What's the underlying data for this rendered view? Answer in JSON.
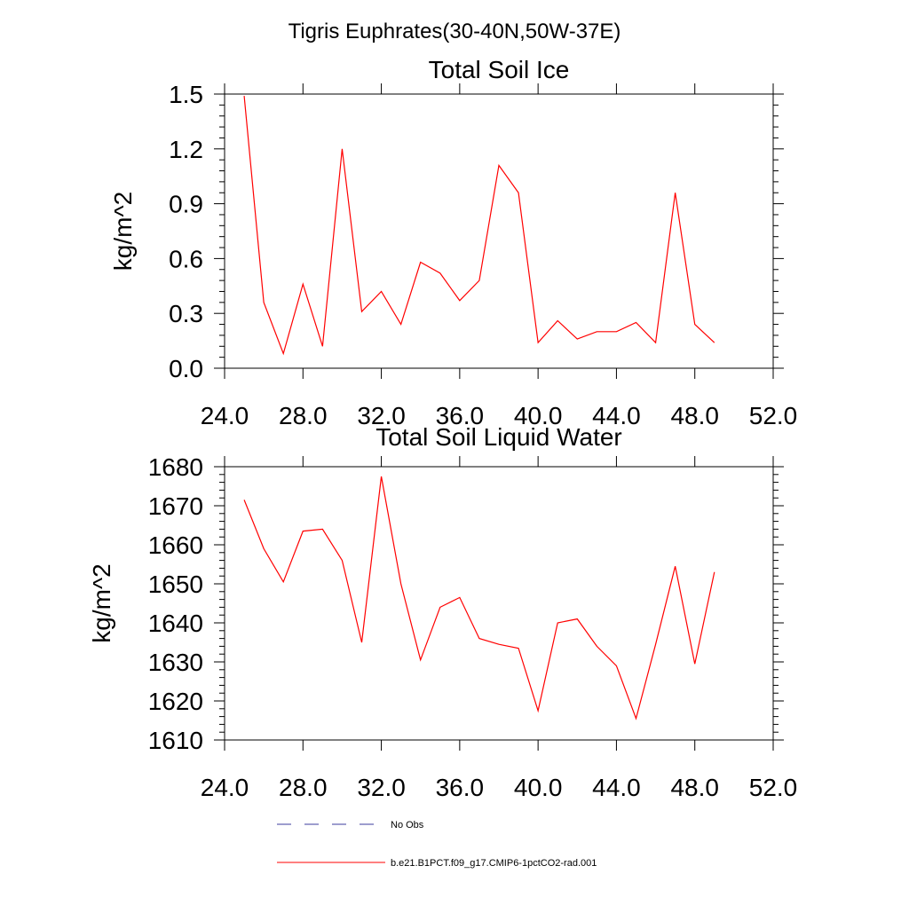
{
  "figure": {
    "suptitle": "Tigris Euphrates(30-40N,50W-37E)"
  },
  "legend": {
    "items": [
      {
        "label": "No Obs",
        "color": "#3b3b9e",
        "dash": true
      },
      {
        "label": "b.e21.B1PCT.f09_g17.CMIP6-1pctCO2-rad.001",
        "color": "#ff0000",
        "dash": false
      }
    ]
  },
  "chart_data": [
    {
      "type": "line",
      "title": "Total Soil Ice",
      "xlabel": "",
      "ylabel": "kg/m^2",
      "xlim": [
        24,
        52
      ],
      "ylim": [
        0,
        1.5
      ],
      "xticks": [
        24,
        28,
        32,
        36,
        40,
        44,
        48,
        52
      ],
      "xtick_labels": [
        "24.0",
        "28.0",
        "32.0",
        "36.0",
        "40.0",
        "44.0",
        "48.0",
        "52.0"
      ],
      "yticks": [
        0,
        0.3,
        0.6,
        0.9,
        1.2,
        1.5
      ],
      "ytick_labels": [
        "0.0",
        "0.3",
        "0.6",
        "0.9",
        "1.2",
        "1.5"
      ],
      "series": [
        {
          "name": "b.e21.B1PCT.f09_g17.CMIP6-1pctCO2-rad.001",
          "color": "#ff0000",
          "x": [
            25,
            26,
            27,
            28,
            29,
            30,
            31,
            32,
            33,
            34,
            35,
            36,
            37,
            38,
            39,
            40,
            41,
            42,
            43,
            44,
            45,
            46,
            47,
            48,
            49
          ],
          "y": [
            1.49,
            0.36,
            0.08,
            0.46,
            0.12,
            1.2,
            0.31,
            0.42,
            0.24,
            0.58,
            0.52,
            0.37,
            0.48,
            1.11,
            0.96,
            0.14,
            0.26,
            0.16,
            0.2,
            0.2,
            0.25,
            0.14,
            0.96,
            0.24,
            0.14
          ]
        }
      ]
    },
    {
      "type": "line",
      "title": "Total Soil Liquid Water",
      "xlabel": "",
      "ylabel": "kg/m^2",
      "xlim": [
        24,
        52
      ],
      "ylim": [
        1610,
        1680
      ],
      "xticks": [
        24,
        28,
        32,
        36,
        40,
        44,
        48,
        52
      ],
      "xtick_labels": [
        "24.0",
        "28.0",
        "32.0",
        "36.0",
        "40.0",
        "44.0",
        "48.0",
        "52.0"
      ],
      "yticks": [
        1610,
        1620,
        1630,
        1640,
        1650,
        1660,
        1670,
        1680
      ],
      "ytick_labels": [
        "1610",
        "1620",
        "1630",
        "1640",
        "1650",
        "1660",
        "1670",
        "1680"
      ],
      "series": [
        {
          "name": "b.e21.B1PCT.f09_g17.CMIP6-1pctCO2-rad.001",
          "color": "#ff0000",
          "x": [
            25,
            26,
            27,
            28,
            29,
            30,
            31,
            32,
            33,
            34,
            35,
            36,
            37,
            38,
            39,
            40,
            41,
            42,
            43,
            44,
            45,
            46,
            47,
            48,
            49
          ],
          "y": [
            1671.5,
            1659,
            1650.5,
            1663.5,
            1664,
            1656,
            1635,
            1677.5,
            1650,
            1630.5,
            1644,
            1646.5,
            1636,
            1634.5,
            1633.5,
            1617.5,
            1640,
            1641,
            1634,
            1629,
            1615.5,
            1634.5,
            1654.5,
            1629.5,
            1653
          ]
        }
      ]
    }
  ]
}
